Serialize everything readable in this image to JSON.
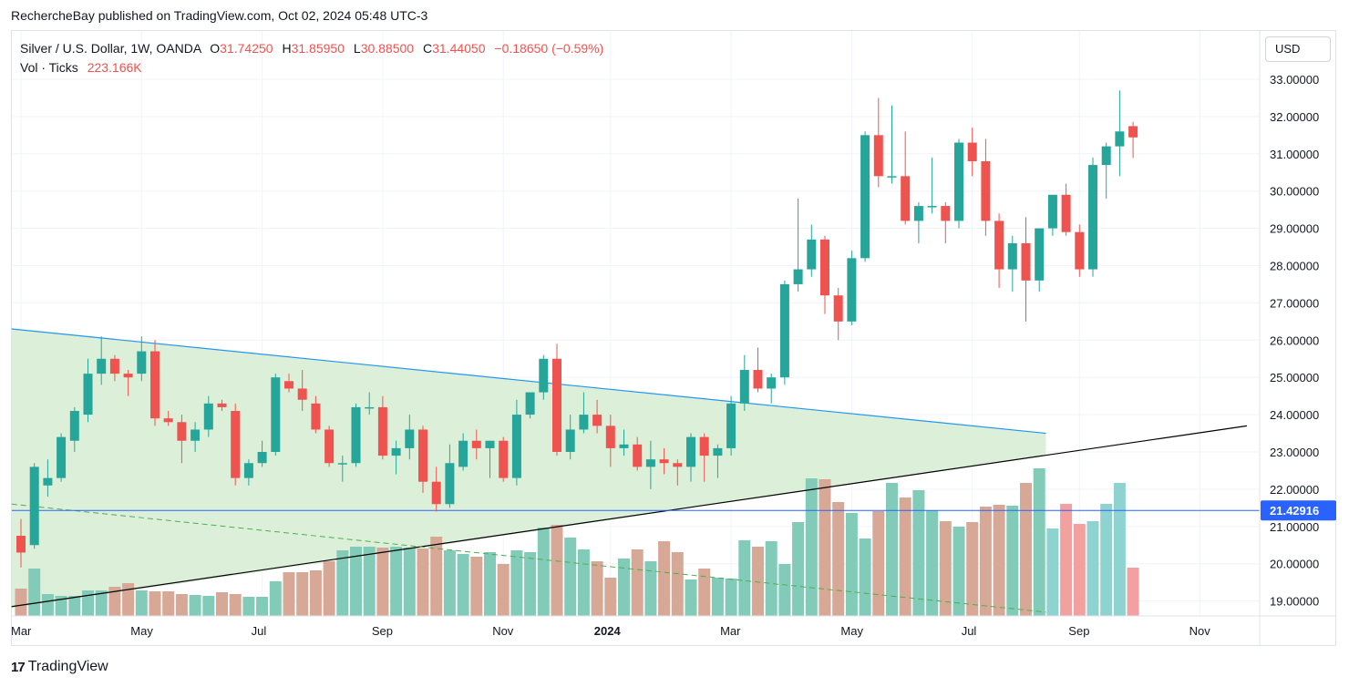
{
  "header": {
    "publisher_line": "RechercheBay published on TradingView.com, Oct 02, 2024 05:48 UTC-3"
  },
  "legend": {
    "symbol": "Silver / U.S. Dollar, 1W, OANDA",
    "o_label": "O",
    "o_value": "31.74250",
    "h_label": "H",
    "h_value": "31.85950",
    "l_label": "L",
    "l_value": "30.88500",
    "c_label": "C",
    "c_value": "31.44050",
    "change": "−0.18650 (−0.59%)",
    "vol_label": "Vol · Ticks",
    "vol_value": "223.166K"
  },
  "currency_button": "USD",
  "footer": {
    "logo_mark": "17",
    "logo_text": "TradingView"
  },
  "colors": {
    "up": "#26a69a",
    "down": "#ef5350",
    "vol_up": "#82cbb8",
    "vol_down": "#d8a896",
    "vol_up_recent": "#8fd3d0",
    "vol_down_recent": "#f2a0a0",
    "triangle_fill": "#dcefd9",
    "triangle_line": "#2196f3",
    "support_line": "#000000",
    "hline": "#2962ff",
    "dashed": "#4caf50"
  },
  "chart_data": {
    "type": "candlestick",
    "title": "Silver / U.S. Dollar, 1W, OANDA",
    "ylim": [
      18.7,
      33.2
    ],
    "y_ticks": [
      "33.00000",
      "32.00000",
      "31.00000",
      "30.00000",
      "29.00000",
      "28.00000",
      "27.00000",
      "26.00000",
      "25.00000",
      "24.00000",
      "23.00000",
      "22.00000",
      "21.00000",
      "20.00000",
      "19.00000"
    ],
    "x_ticks": [
      {
        "label": "Mar",
        "bar": 0,
        "bold": false
      },
      {
        "label": "May",
        "bar": 9,
        "bold": false
      },
      {
        "label": "Jul",
        "bar": 18,
        "bold": false
      },
      {
        "label": "Sep",
        "bar": 27,
        "bold": false
      },
      {
        "label": "Nov",
        "bar": 36,
        "bold": false
      },
      {
        "label": "2024",
        "bar": 44,
        "bold": true
      },
      {
        "label": "Mar",
        "bar": 53,
        "bold": false
      },
      {
        "label": "May",
        "bar": 62,
        "bold": false
      },
      {
        "label": "Jul",
        "bar": 71,
        "bold": false
      },
      {
        "label": "Sep",
        "bar": 79,
        "bold": false
      },
      {
        "label": "Nov",
        "bar": 88,
        "bold": false
      }
    ],
    "price_label": "21.42916",
    "price_line_value": 21.42916,
    "candles": [
      [
        20.75,
        21.2,
        19.9,
        20.3
      ],
      [
        20.5,
        22.7,
        20.4,
        22.6
      ],
      [
        22.1,
        22.8,
        21.8,
        22.3
      ],
      [
        22.3,
        23.5,
        22.2,
        23.4
      ],
      [
        23.3,
        24.2,
        23.0,
        24.1
      ],
      [
        24.0,
        25.5,
        23.8,
        25.1
      ],
      [
        25.1,
        26.1,
        24.8,
        25.5
      ],
      [
        25.5,
        25.6,
        24.9,
        25.1
      ],
      [
        25.1,
        25.2,
        24.5,
        25.0
      ],
      [
        25.1,
        26.1,
        24.9,
        25.7
      ],
      [
        25.7,
        26.0,
        23.7,
        23.9
      ],
      [
        23.9,
        24.1,
        23.7,
        23.8
      ],
      [
        23.8,
        24.0,
        22.7,
        23.3
      ],
      [
        23.3,
        23.8,
        23.0,
        23.6
      ],
      [
        23.6,
        24.5,
        23.4,
        24.3
      ],
      [
        24.3,
        24.4,
        24.1,
        24.2
      ],
      [
        24.1,
        24.3,
        22.1,
        22.3
      ],
      [
        22.3,
        22.8,
        22.1,
        22.7
      ],
      [
        22.7,
        23.3,
        22.6,
        23.0
      ],
      [
        23.0,
        25.1,
        22.9,
        25.0
      ],
      [
        24.9,
        25.1,
        24.6,
        24.7
      ],
      [
        24.7,
        25.2,
        24.1,
        24.4
      ],
      [
        24.3,
        24.5,
        23.5,
        23.6
      ],
      [
        23.6,
        23.7,
        22.6,
        22.7
      ],
      [
        22.7,
        22.9,
        22.2,
        22.7
      ],
      [
        22.7,
        24.3,
        22.6,
        24.2
      ],
      [
        24.2,
        24.6,
        24.0,
        24.2
      ],
      [
        24.2,
        24.5,
        22.8,
        22.9
      ],
      [
        22.9,
        23.3,
        22.4,
        23.1
      ],
      [
        23.1,
        24.0,
        22.8,
        23.6
      ],
      [
        23.6,
        23.7,
        21.9,
        22.2
      ],
      [
        22.2,
        22.6,
        21.4,
        21.6
      ],
      [
        21.6,
        23.2,
        21.5,
        22.7
      ],
      [
        22.6,
        23.5,
        22.5,
        23.3
      ],
      [
        23.3,
        23.6,
        22.8,
        23.1
      ],
      [
        23.1,
        23.3,
        22.3,
        23.3
      ],
      [
        23.3,
        23.4,
        22.2,
        22.3
      ],
      [
        22.3,
        24.4,
        22.1,
        24.0
      ],
      [
        24.0,
        24.6,
        23.9,
        24.6
      ],
      [
        24.6,
        25.6,
        24.4,
        25.5
      ],
      [
        25.5,
        25.9,
        22.9,
        23.0
      ],
      [
        23.0,
        24.0,
        22.8,
        23.6
      ],
      [
        23.6,
        24.6,
        23.5,
        24.0
      ],
      [
        24.0,
        24.4,
        23.5,
        23.7
      ],
      [
        23.7,
        24.0,
        22.6,
        23.1
      ],
      [
        23.1,
        23.6,
        22.9,
        23.2
      ],
      [
        23.2,
        23.4,
        22.5,
        22.6
      ],
      [
        22.6,
        23.3,
        22.0,
        22.8
      ],
      [
        22.8,
        23.1,
        22.4,
        22.7
      ],
      [
        22.7,
        22.8,
        22.1,
        22.6
      ],
      [
        22.6,
        23.5,
        22.2,
        23.4
      ],
      [
        23.4,
        23.5,
        22.2,
        22.9
      ],
      [
        22.9,
        23.2,
        22.3,
        23.1
      ],
      [
        23.1,
        24.5,
        22.9,
        24.3
      ],
      [
        24.3,
        25.6,
        24.1,
        25.2
      ],
      [
        25.2,
        25.8,
        24.6,
        24.7
      ],
      [
        24.7,
        25.1,
        24.3,
        25.0
      ],
      [
        25.0,
        27.6,
        24.8,
        27.5
      ],
      [
        27.5,
        29.8,
        27.3,
        27.9
      ],
      [
        27.9,
        29.1,
        27.7,
        28.7
      ],
      [
        28.7,
        28.8,
        26.7,
        27.2
      ],
      [
        27.2,
        27.4,
        26.0,
        26.5
      ],
      [
        26.5,
        28.4,
        26.4,
        28.2
      ],
      [
        28.2,
        31.6,
        28.1,
        31.5
      ],
      [
        31.5,
        32.5,
        30.1,
        30.4
      ],
      [
        30.4,
        32.3,
        30.2,
        30.4
      ],
      [
        30.4,
        31.6,
        29.1,
        29.2
      ],
      [
        29.2,
        29.7,
        28.6,
        29.6
      ],
      [
        29.6,
        30.9,
        29.4,
        29.6
      ],
      [
        29.6,
        29.7,
        28.6,
        29.2
      ],
      [
        29.2,
        31.4,
        29.0,
        31.3
      ],
      [
        31.3,
        31.7,
        30.4,
        30.8
      ],
      [
        30.8,
        31.4,
        28.8,
        29.2
      ],
      [
        29.2,
        29.4,
        27.4,
        27.9
      ],
      [
        27.9,
        28.8,
        27.3,
        28.6
      ],
      [
        28.6,
        29.3,
        26.5,
        27.6
      ],
      [
        27.6,
        29.0,
        27.3,
        29.0
      ],
      [
        29.0,
        29.9,
        28.8,
        29.9
      ],
      [
        29.9,
        30.2,
        28.8,
        28.9
      ],
      [
        28.9,
        29.1,
        27.7,
        27.9
      ],
      [
        27.9,
        30.9,
        27.7,
        30.7
      ],
      [
        30.7,
        31.3,
        29.8,
        31.2
      ],
      [
        31.2,
        32.7,
        30.4,
        31.6
      ],
      [
        31.7425,
        31.8595,
        30.885,
        31.4405
      ]
    ],
    "volume": [
      0.3,
      0.52,
      0.24,
      0.22,
      0.22,
      0.28,
      0.28,
      0.32,
      0.36,
      0.28,
      0.27,
      0.27,
      0.24,
      0.23,
      0.22,
      0.26,
      0.24,
      0.21,
      0.21,
      0.38,
      0.48,
      0.48,
      0.5,
      0.6,
      0.72,
      0.76,
      0.76,
      0.75,
      0.76,
      0.75,
      0.74,
      0.87,
      0.72,
      0.68,
      0.65,
      0.7,
      0.57,
      0.72,
      0.7,
      0.97,
      1.0,
      0.86,
      0.73,
      0.6,
      0.42,
      0.63,
      0.73,
      0.6,
      0.82,
      0.7,
      0.4,
      0.52,
      0.42,
      0.41,
      0.83,
      0.76,
      0.82,
      0.57,
      1.03,
      1.51,
      1.5,
      1.25,
      1.13,
      0.85,
      1.15,
      1.46,
      1.3,
      1.38,
      1.16,
      1.04,
      0.98,
      1.03,
      1.2,
      1.22,
      1.21,
      1.46,
      1.62,
      0.96,
      1.23,
      1.01,
      1.04,
      1.23,
      1.46,
      0.53
    ],
    "annotations": {
      "triangle_label": "",
      "support_line_label": ""
    }
  }
}
